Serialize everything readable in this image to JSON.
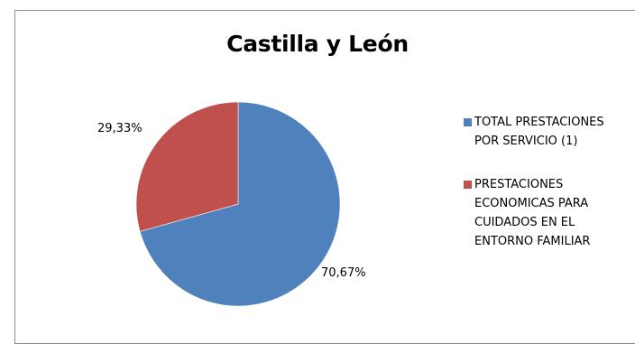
{
  "chart_data": {
    "type": "pie",
    "title": "Castilla y León",
    "legend_position": "right",
    "slices": [
      {
        "label": "TOTAL PRESTACIONES POR SERVICIO (1)",
        "legend_lines": [
          "TOTAL PRESTACIONES",
          "POR SERVICIO (1)"
        ],
        "value": 70.67,
        "data_label": "70,67%",
        "color": "#4f81bd"
      },
      {
        "label": "PRESTACIONES ECONOMICAS PARA CUIDADOS EN EL ENTORNO FAMILIAR",
        "legend_lines": [
          "PRESTACIONES",
          "ECONOMICAS PARA",
          "CUIDADOS EN EL",
          "ENTORNO FAMILIAR"
        ],
        "value": 29.33,
        "data_label": "29,33%",
        "color": "#c0504d"
      }
    ]
  }
}
